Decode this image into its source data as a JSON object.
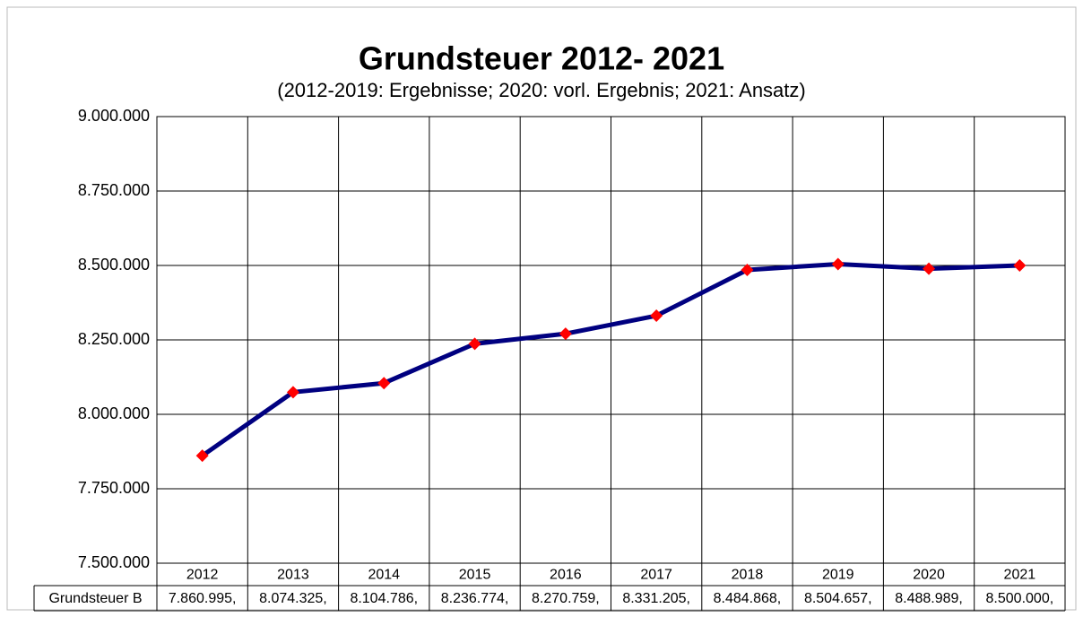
{
  "chart_data": {
    "type": "line",
    "title": "Grundsteuer 2012- 2021",
    "subtitle": "(2012-2019: Ergebnisse; 2020: vorl. Ergebnis; 2021: Ansatz)",
    "categories": [
      "2012",
      "2013",
      "2014",
      "2015",
      "2016",
      "2017",
      "2018",
      "2019",
      "2020",
      "2021"
    ],
    "series": [
      {
        "name": "Grundsteuer B",
        "color": "#000080",
        "marker_color": "#ff0000",
        "values": [
          7860995,
          8074325,
          8104786,
          8236774,
          8270759,
          8331205,
          8484868,
          8504657,
          8488989,
          8500000
        ],
        "value_labels": [
          "7.860.995,",
          "8.074.325,",
          "8.104.786,",
          "8.236.774,",
          "8.270.759,",
          "8.331.205,",
          "8.484.868,",
          "8.504.657,",
          "8.488.989,",
          "8.500.000,"
        ]
      }
    ],
    "ylim": [
      7500000,
      9000000
    ],
    "yticks": [
      {
        "value": 7500000,
        "label": "7.500.000"
      },
      {
        "value": 7750000,
        "label": "7.750.000"
      },
      {
        "value": 8000000,
        "label": "8.000.000"
      },
      {
        "value": 8250000,
        "label": "8.250.000"
      },
      {
        "value": 8500000,
        "label": "8.500.000"
      },
      {
        "value": 8750000,
        "label": "8.750.000"
      },
      {
        "value": 9000000,
        "label": "9.000.000"
      }
    ],
    "grid": true
  }
}
